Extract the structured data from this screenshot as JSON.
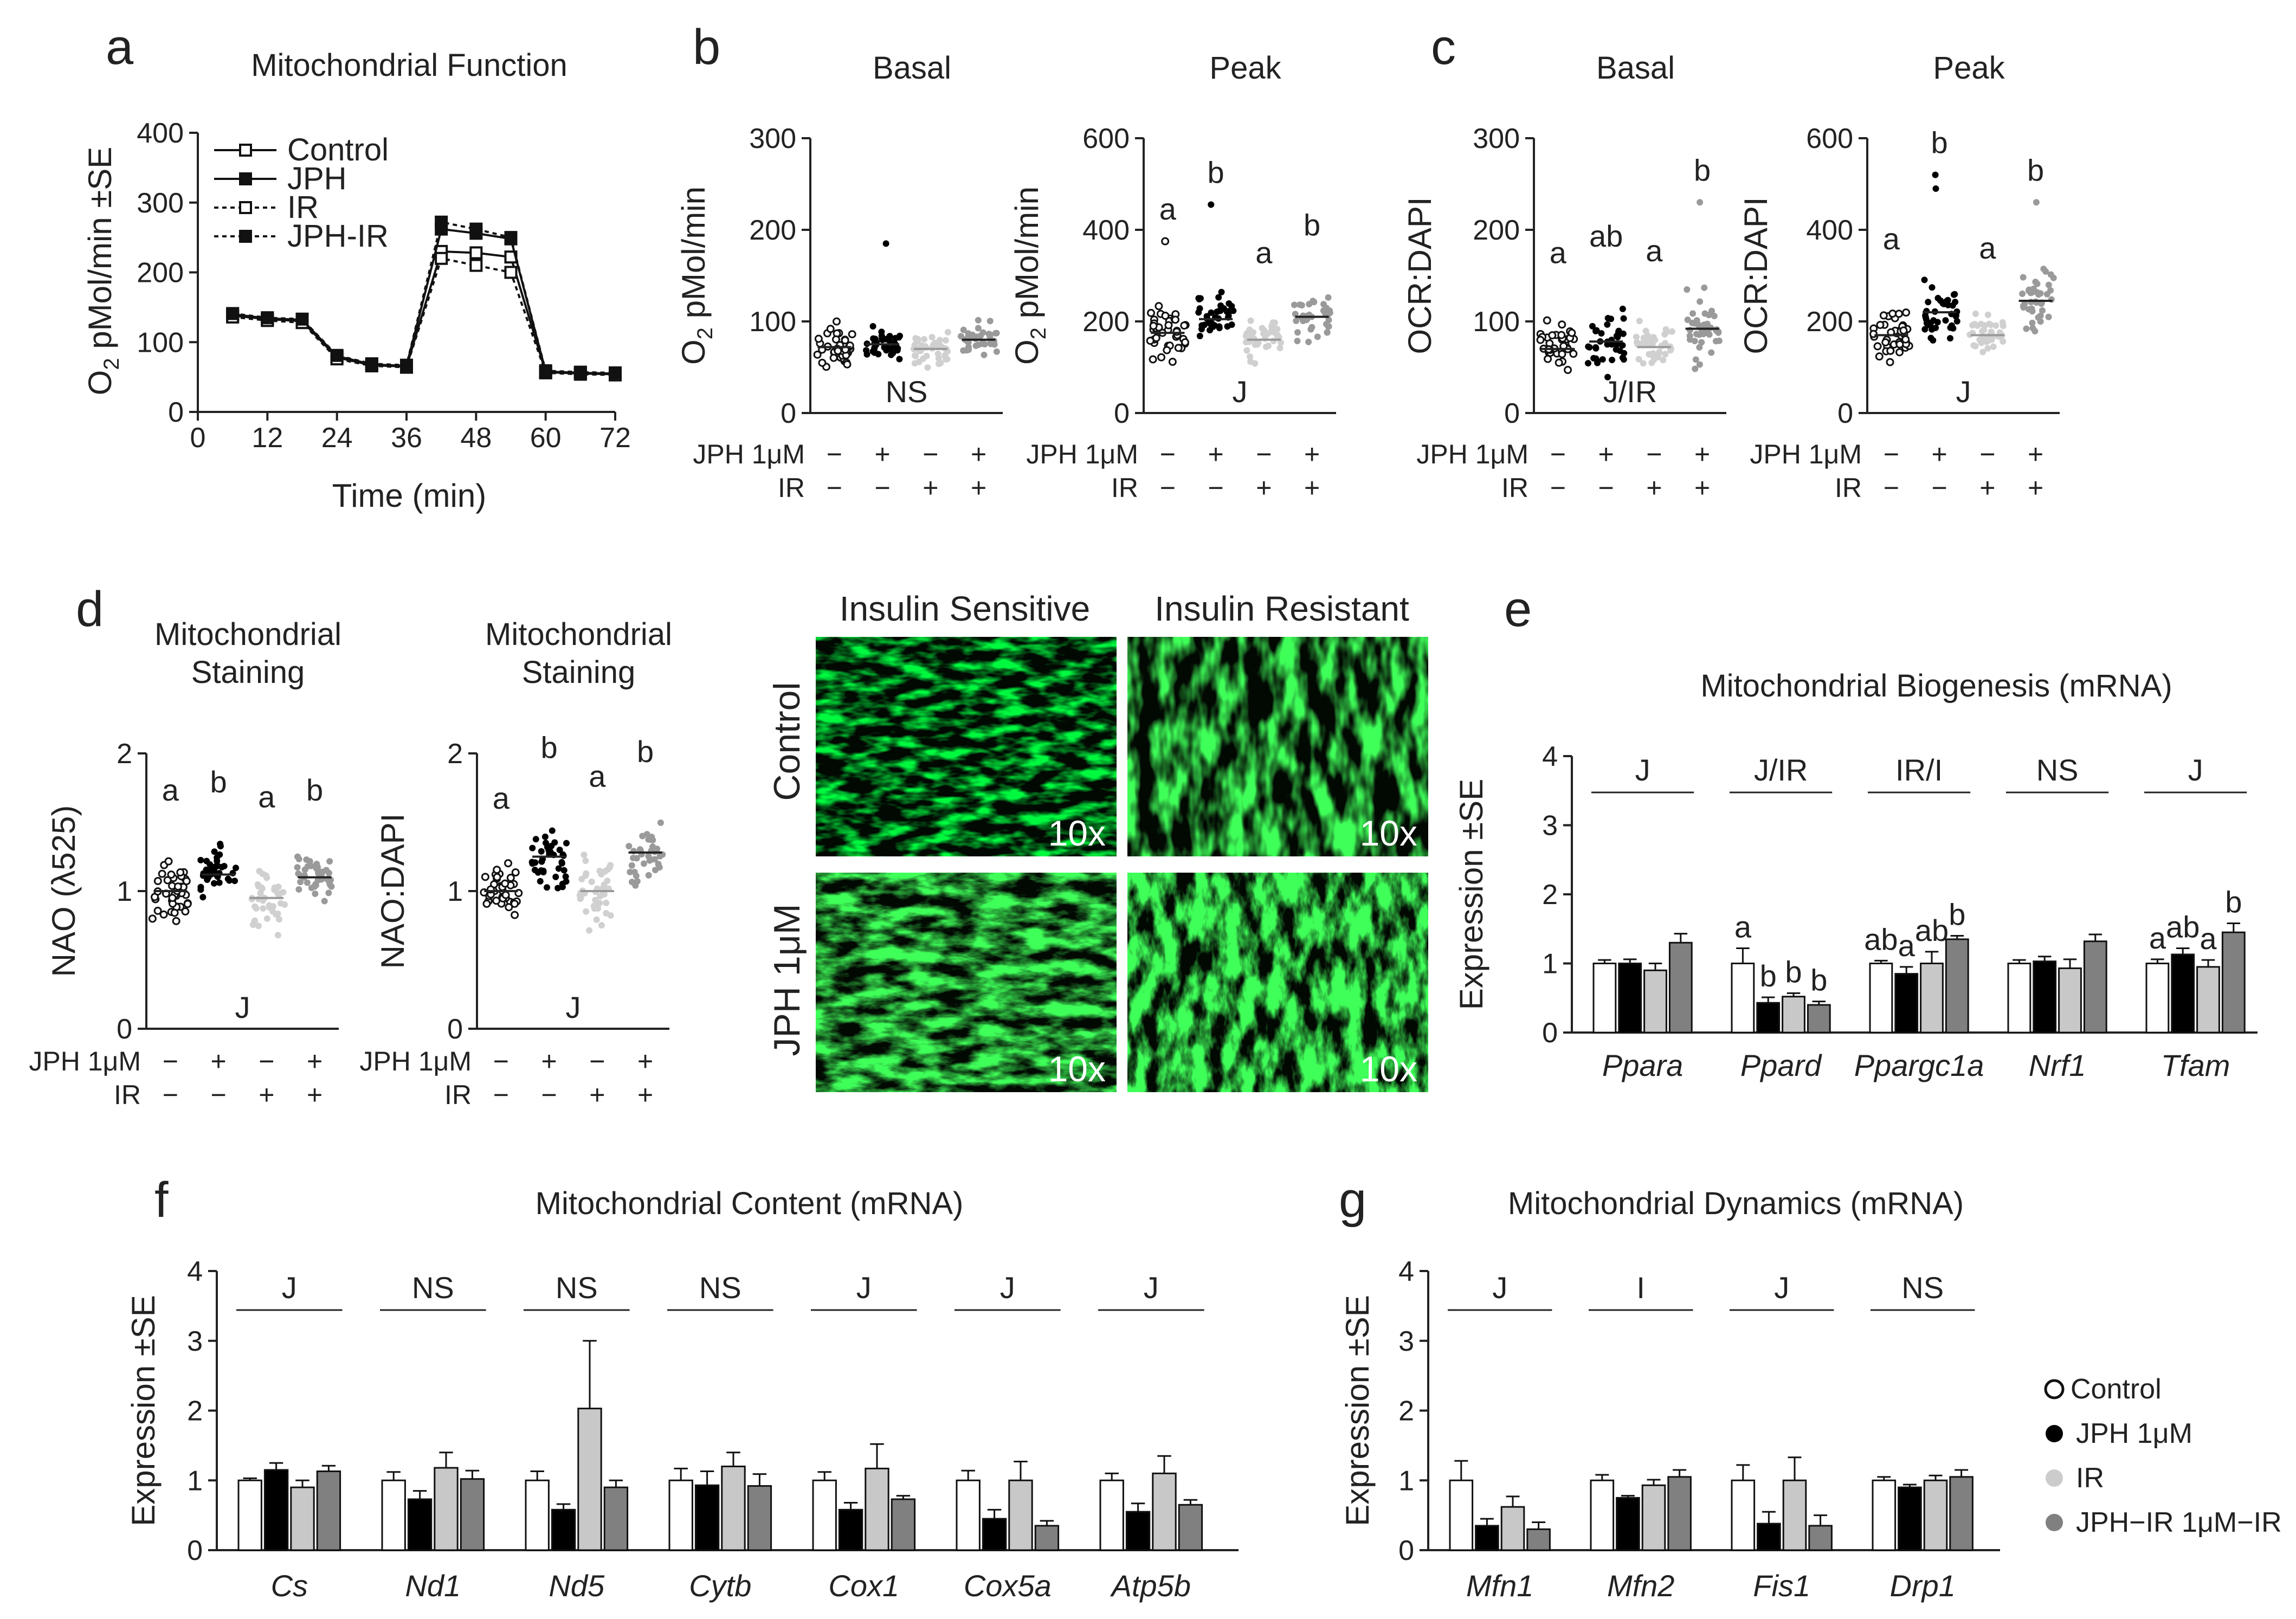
{
  "panels": {
    "a": "a",
    "b": "b",
    "c": "c",
    "d": "d",
    "e": "e",
    "f": "f",
    "g": "g"
  },
  "conditions": {
    "row1": "JPH 1μM",
    "row2": "IR",
    "minus": "−",
    "plus": "+",
    "row1_signs": [
      "−",
      "+",
      "−",
      "+"
    ],
    "row2_signs": [
      "−",
      "−",
      "+",
      "+"
    ]
  },
  "colors": {
    "control": "#ffffff",
    "jph": "#000000",
    "ir": "#cccccc",
    "jph_ir": "#808080"
  },
  "microscopy": {
    "col_titles": [
      "Insulin Sensitive",
      "Insulin Resistant"
    ],
    "row_labels": [
      "Control",
      "JPH 1μM"
    ],
    "magnification": "10x"
  },
  "legend": {
    "items": [
      {
        "label": "Control",
        "color": "#ffffff"
      },
      {
        "label": "JPH 1μM",
        "color": "#000000"
      },
      {
        "label": "IR",
        "color": "#cccccc"
      },
      {
        "label": "JPH−IR 1μM−IR",
        "color": "#808080"
      }
    ]
  },
  "chart_data": [
    {
      "id": "a",
      "type": "line",
      "title": "Mitochondrial Function",
      "xlabel": "Time (min)",
      "ylabel_main": "O",
      "ylabel_sub": "2",
      "ylabel_rest": " pMol/min ±SE",
      "xlim": [
        0,
        72
      ],
      "ylim": [
        0,
        400
      ],
      "xticks": [
        0,
        12,
        24,
        36,
        48,
        60,
        72
      ],
      "yticks": [
        0,
        100,
        200,
        300,
        400
      ],
      "x": [
        6,
        12,
        18,
        24,
        30,
        36,
        42,
        48,
        54,
        60,
        66,
        72
      ],
      "series": [
        {
          "name": "Control",
          "style": "solid-open",
          "values": [
            138,
            133,
            130,
            78,
            67,
            65,
            230,
            228,
            222,
            57,
            55,
            54
          ]
        },
        {
          "name": "JPH",
          "style": "solid-filled",
          "values": [
            140,
            134,
            132,
            80,
            68,
            66,
            262,
            256,
            248,
            58,
            56,
            55
          ]
        },
        {
          "name": "IR",
          "style": "dotted-open",
          "values": [
            136,
            131,
            128,
            76,
            66,
            64,
            220,
            210,
            200,
            56,
            54,
            53
          ]
        },
        {
          "name": "JPH-IR",
          "style": "dotted-filled",
          "values": [
            141,
            135,
            133,
            81,
            69,
            67,
            272,
            262,
            250,
            59,
            57,
            56
          ]
        }
      ]
    },
    {
      "id": "b1",
      "type": "scatter",
      "title": "Basal",
      "ylabel_main": "O",
      "ylabel_sub": "2",
      "ylabel_rest": " pMol/min",
      "ylim": [
        0,
        300
      ],
      "yticks": [
        0,
        100,
        200,
        300
      ],
      "means": [
        72,
        75,
        70,
        80
      ],
      "spread": [
        30,
        25,
        28,
        30
      ],
      "outliers": [
        [],
        [
          185
        ],
        [],
        []
      ],
      "letters": [
        "",
        "",
        "",
        ""
      ],
      "stat": "NS"
    },
    {
      "id": "b2",
      "type": "scatter",
      "title": "Peak",
      "ylabel_main": "O",
      "ylabel_sub": "2",
      "ylabel_rest": " pMol/min",
      "ylim": [
        0,
        600
      ],
      "yticks": [
        0,
        200,
        400,
        600
      ],
      "means": [
        175,
        205,
        160,
        210
      ],
      "spread": [
        70,
        70,
        60,
        65
      ],
      "outliers": [
        [
          375
        ],
        [
          455
        ],
        [],
        []
      ],
      "letters": [
        "a",
        "b",
        "a",
        "b"
      ],
      "stat": "J"
    },
    {
      "id": "c1",
      "type": "scatter",
      "title": "Basal",
      "ylabel_main": "OCR:DAPI",
      "ylim": [
        0,
        300
      ],
      "yticks": [
        0,
        100,
        200,
        300
      ],
      "means": [
        70,
        78,
        72,
        92
      ],
      "spread": [
        35,
        40,
        35,
        45
      ],
      "outliers": [
        [],
        [],
        [],
        [
          230
        ]
      ],
      "letters": [
        "a",
        "ab",
        "a",
        "b"
      ],
      "stat": "J/IR"
    },
    {
      "id": "c2",
      "type": "scatter",
      "title": "Peak",
      "ylabel_main": "OCR:DAPI",
      "ylim": [
        0,
        600
      ],
      "yticks": [
        0,
        200,
        400,
        600
      ],
      "means": [
        170,
        220,
        170,
        245
      ],
      "spread": [
        70,
        80,
        60,
        90
      ],
      "outliers": [
        [],
        [
          520,
          490
        ],
        [],
        [
          460
        ]
      ],
      "letters": [
        "a",
        "b",
        "a",
        "b"
      ],
      "stat": "J"
    },
    {
      "id": "d1",
      "type": "scatter",
      "title_lines": [
        "Mitochondrial",
        "Staining"
      ],
      "ylabel_main": "NAO (λ525)",
      "ylim": [
        0,
        2
      ],
      "yticks": [
        0,
        1,
        2
      ],
      "means": [
        1.0,
        1.12,
        0.95,
        1.1
      ],
      "spread": [
        0.25,
        0.22,
        0.25,
        0.2
      ],
      "outliers": [
        [],
        [],
        [],
        []
      ],
      "letters": [
        "a",
        "b",
        "a",
        "b"
      ],
      "stat": "J"
    },
    {
      "id": "d2",
      "type": "scatter",
      "title_lines": [
        "Mitochondrial",
        "Staining"
      ],
      "ylabel_main": "NAO:DAPI",
      "ylim": [
        0,
        2
      ],
      "yticks": [
        0,
        1,
        2
      ],
      "means": [
        1.0,
        1.25,
        1.0,
        1.28
      ],
      "spread": [
        0.22,
        0.28,
        0.3,
        0.25
      ],
      "outliers": [
        [],
        [],
        [],
        []
      ],
      "letters": [
        "a",
        "b",
        "a",
        "b"
      ],
      "stat": "J"
    },
    {
      "id": "e",
      "type": "bar",
      "title": "Mitochondrial Biogenesis (mRNA)",
      "ylabel_main": "Expression ±SE",
      "ylim": [
        0,
        4
      ],
      "yticks": [
        0,
        1,
        2,
        3,
        4
      ],
      "categories": [
        "Ppara",
        "Ppard",
        "Ppargc1a",
        "Nrf1",
        "Tfam"
      ],
      "stats": [
        "J",
        "J/IR",
        "IR/I",
        "NS",
        "J"
      ],
      "series": [
        {
          "name": "Control",
          "values": [
            1.0,
            1.0,
            1.0,
            1.0,
            1.0
          ],
          "errors": [
            0.05,
            0.22,
            0.04,
            0.05,
            0.06
          ]
        },
        {
          "name": "JPH 1μM",
          "values": [
            1.0,
            0.43,
            0.85,
            1.03,
            1.13
          ],
          "errors": [
            0.06,
            0.08,
            0.1,
            0.07,
            0.09
          ]
        },
        {
          "name": "IR",
          "values": [
            0.9,
            0.52,
            1.0,
            0.93,
            0.95
          ],
          "errors": [
            0.1,
            0.05,
            0.17,
            0.13,
            0.1
          ]
        },
        {
          "name": "JPH-IR 1μM-IR",
          "values": [
            1.3,
            0.4,
            1.35,
            1.32,
            1.45
          ],
          "errors": [
            0.13,
            0.05,
            0.05,
            0.1,
            0.13
          ]
        }
      ],
      "letters": [
        [
          "",
          "",
          "",
          ""
        ],
        [
          "a",
          "b",
          "b",
          "b"
        ],
        [
          "ab",
          "a",
          "ab",
          "b"
        ],
        [
          "",
          "",
          "",
          ""
        ],
        [
          "a",
          "ab",
          "a",
          "b"
        ]
      ]
    },
    {
      "id": "f",
      "type": "bar",
      "title": "Mitochondrial Content (mRNA)",
      "ylabel_main": "Expression ±SE",
      "ylim": [
        0,
        4
      ],
      "yticks": [
        0,
        1,
        2,
        3,
        4
      ],
      "categories": [
        "Cs",
        "Nd1",
        "Nd5",
        "Cytb",
        "Cox1",
        "Cox5a",
        "Atp5b"
      ],
      "stats": [
        "J",
        "NS",
        "NS",
        "NS",
        "J",
        "J",
        "J"
      ],
      "series": [
        {
          "name": "Control",
          "values": [
            1.0,
            1.0,
            1.0,
            1.0,
            1.0,
            1.0,
            1.0
          ],
          "errors": [
            0.03,
            0.12,
            0.13,
            0.17,
            0.12,
            0.14,
            0.1
          ]
        },
        {
          "name": "JPH 1μM",
          "values": [
            1.15,
            0.73,
            0.58,
            0.93,
            0.58,
            0.45,
            0.55
          ]
        },
        {
          "name": "IR",
          "values": [
            0.9,
            1.18,
            2.03,
            1.2,
            1.17,
            1.0,
            1.1
          ]
        },
        {
          "name": "JPH-IR 1μM-IR",
          "values": [
            1.13,
            1.02,
            0.9,
            0.92,
            0.73,
            0.35,
            0.65
          ]
        }
      ],
      "errors_all": [
        [
          0.03,
          0.12,
          0.13,
          0.17,
          0.12,
          0.14,
          0.1
        ],
        [
          0.1,
          0.12,
          0.08,
          0.2,
          0.1,
          0.13,
          0.12
        ],
        [
          0.1,
          0.22,
          0.97,
          0.2,
          0.35,
          0.27,
          0.25
        ],
        [
          0.08,
          0.12,
          0.1,
          0.17,
          0.05,
          0.07,
          0.07
        ]
      ]
    },
    {
      "id": "g",
      "type": "bar",
      "title": "Mitochondrial Dynamics (mRNA)",
      "ylabel_main": "Expression ±SE",
      "ylim": [
        0,
        4
      ],
      "yticks": [
        0,
        1,
        2,
        3,
        4
      ],
      "categories": [
        "Mfn1",
        "Mfn2",
        "Fis1",
        "Drp1"
      ],
      "stats": [
        "J",
        "I",
        "J",
        "NS"
      ],
      "series": [
        {
          "name": "Control",
          "values": [
            1.0,
            1.0,
            1.0,
            1.0
          ]
        },
        {
          "name": "JPH 1μM",
          "values": [
            0.35,
            0.75,
            0.38,
            0.9
          ]
        },
        {
          "name": "IR",
          "values": [
            0.62,
            0.93,
            1.0,
            1.0
          ]
        },
        {
          "name": "JPH-IR 1μM-IR",
          "values": [
            0.3,
            1.05,
            0.35,
            1.05
          ]
        }
      ],
      "errors_all": [
        [
          0.28,
          0.08,
          0.22,
          0.05
        ],
        [
          0.1,
          0.03,
          0.17,
          0.04
        ],
        [
          0.15,
          0.08,
          0.33,
          0.07
        ],
        [
          0.1,
          0.1,
          0.15,
          0.1
        ]
      ]
    }
  ]
}
